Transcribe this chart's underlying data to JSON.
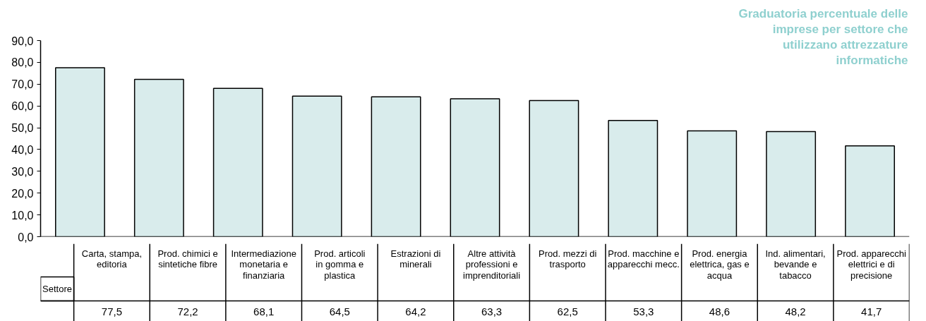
{
  "chart_data": {
    "type": "bar",
    "title": "Graduatoria percentuale delle imprese per settore che utilizzano attrezzature informatiche",
    "xlabel": "Settore",
    "categories": [
      "Carta, stampa, editoria",
      "Prod. chimici e sintetiche fibre",
      "Intermediazione monetaria e finanziaria",
      "Prod. articoli in gomma e plastica",
      "Estrazioni di minerali",
      "Altre attività professioni e imprenditoriali",
      "Prod. mezzi di trasporto",
      "Prod. macchine e apparecchi mecc.",
      "Prod. energia elettrica, gas e acqua",
      "Ind. alimentari, bevande e tabacco",
      "Prod. apparecchi elettrici e di precisione"
    ],
    "values": [
      77.5,
      72.2,
      68.1,
      64.5,
      64.2,
      63.3,
      62.5,
      53.3,
      48.6,
      48.2,
      41.7
    ],
    "color": "#d9ecec",
    "value_labels": [
      "77,5",
      "72,2",
      "68,1",
      "64,5",
      "64,2",
      "63,3",
      "62,5",
      "53,3",
      "48,6",
      "48,2",
      "41,7"
    ],
    "ylim": [
      0,
      90
    ],
    "yticks": [
      {
        "value": 0,
        "label": "0,0"
      },
      {
        "value": 10,
        "label": "10,0"
      },
      {
        "value": 20,
        "label": "20,0"
      },
      {
        "value": 30,
        "label": "30,0"
      },
      {
        "value": 40,
        "label": "40,0"
      },
      {
        "value": 50,
        "label": "50,0"
      },
      {
        "value": 60,
        "label": "60,0"
      },
      {
        "value": 70,
        "label": "70,0"
      },
      {
        "value": 80,
        "label": "80,0"
      },
      {
        "value": 90,
        "label": "90,0"
      }
    ]
  }
}
